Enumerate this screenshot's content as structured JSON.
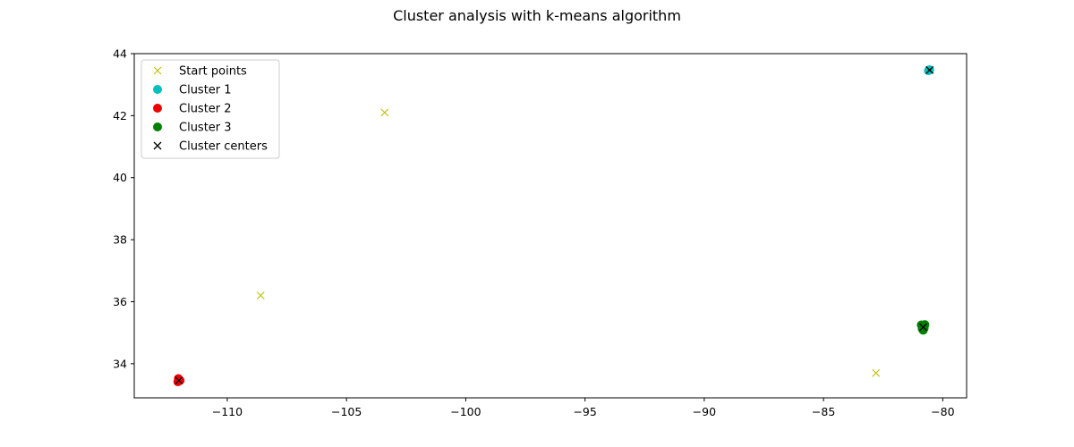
{
  "chart_data": {
    "type": "scatter",
    "title": "Cluster analysis with k-means algorithm",
    "xlabel": "",
    "ylabel": "",
    "xlim": [
      -113.9,
      -79.0
    ],
    "ylim": [
      32.9,
      44.0
    ],
    "xticks": [
      -110,
      -105,
      -100,
      -95,
      -90,
      -85,
      -80
    ],
    "xtick_labels": [
      "−110",
      "−105",
      "−100",
      "−95",
      "−90",
      "−85",
      "−80"
    ],
    "yticks": [
      34,
      36,
      38,
      40,
      42,
      44
    ],
    "ytick_labels": [
      "34",
      "36",
      "38",
      "40",
      "42",
      "44"
    ],
    "grid": false,
    "legend_position": "upper-left",
    "series": [
      {
        "name": "Start points",
        "marker": "x",
        "color": "#bfbf00",
        "points": [
          [
            -103.4,
            42.1
          ],
          [
            -108.6,
            36.2
          ],
          [
            -82.8,
            33.7
          ]
        ]
      },
      {
        "name": "Cluster 1",
        "marker": "circle",
        "color": "#00bfbf",
        "points": [
          [
            -80.55,
            43.48
          ],
          [
            -80.6,
            43.45
          ]
        ]
      },
      {
        "name": "Cluster 2",
        "marker": "circle",
        "color": "#ee0000",
        "points": [
          [
            -112.05,
            33.52
          ],
          [
            -112.07,
            33.42
          ],
          [
            -111.98,
            33.46
          ]
        ]
      },
      {
        "name": "Cluster 3",
        "marker": "circle",
        "color": "#008000",
        "points": [
          [
            -80.9,
            35.25
          ],
          [
            -80.75,
            35.26
          ],
          [
            -80.82,
            35.08
          ],
          [
            -80.86,
            35.13
          ],
          [
            -80.78,
            35.15
          ]
        ]
      },
      {
        "name": "Cluster centers",
        "marker": "x",
        "color": "#000000",
        "points": [
          [
            -80.55,
            43.47
          ],
          [
            -112.03,
            33.46
          ],
          [
            -80.82,
            35.18
          ]
        ]
      }
    ]
  }
}
